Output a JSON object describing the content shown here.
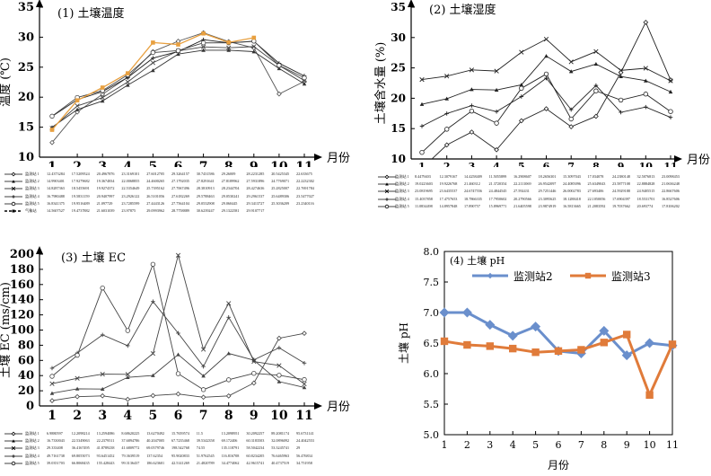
{
  "chart_data": [
    {
      "type": "line",
      "title": "(1) 土壤温度",
      "xlabel": "月份",
      "ylabel": "温度 (℃)",
      "ylim": [
        10,
        35
      ],
      "yticks": [
        "10",
        "15",
        "20",
        "25",
        "30",
        "35"
      ],
      "categories": [
        "1",
        "2",
        "3",
        "4",
        "5",
        "6",
        "7",
        "8",
        "9",
        "10",
        "11"
      ],
      "series": [
        {
          "name": "监测站 1",
          "marker": "diamond-open",
          "color": "#555555",
          "labels": [
            "12.4373284",
            "17.5209524",
            "20.4967876",
            "23.3169101",
            "27.6012705",
            "29.3264157",
            "30.7431586",
            "29.26009",
            "28.2231285",
            "20.5425345",
            "22.633675"
          ],
          "values": [
            12.44,
            17.52,
            20.5,
            23.32,
            27.6,
            29.33,
            30.74,
            29.26,
            28.22,
            20.54,
            22.63
          ]
        },
        {
          "name": "监测站 2",
          "marker": "triangle",
          "color": "#333333",
          "labels": [
            "14.9903401",
            "17.9279682",
            "19.3674834",
            "22.0068855",
            "24.4600265",
            "27.1792035",
            "27.8291641",
            "27.8189962",
            "27.5931896",
            "24.7769071",
            "22.2232302"
          ],
          "values": [
            14.99,
            17.93,
            19.37,
            22.01,
            24.46,
            27.18,
            27.83,
            27.82,
            27.59,
            24.78,
            22.22
          ]
        },
        {
          "name": "监测站 3",
          "marker": "x",
          "color": "#444444",
          "labels": [
            "14.8287363",
            "18.5455691",
            "19.9274372",
            "22.5354649",
            "25.7395162",
            "27.7067496",
            "28.3810913",
            "28.2344704",
            "28.4274636",
            "25.2825007",
            "22.7691784"
          ],
          "values": [
            14.83,
            18.55,
            19.93,
            22.54,
            25.74,
            27.71,
            28.38,
            28.23,
            28.43,
            25.28,
            22.77
          ]
        },
        {
          "name": "监测站 4",
          "marker": "plus",
          "color": "#222222",
          "labels": [
            "16.7980488",
            "19.5831159",
            "20.9407997",
            "23.2926122",
            "26.5101056",
            "27.6182269",
            "29.5788463",
            "29.0530241",
            "29.2961537",
            "25.6489306",
            "23.5477027"
          ],
          "values": [
            16.8,
            19.58,
            20.94,
            23.29,
            26.51,
            27.62,
            29.58,
            29.05,
            29.3,
            25.65,
            23.55
          ]
        },
        {
          "name": "监测站 5",
          "marker": "circle-open",
          "color": "#444444",
          "labels": [
            "16.8341375",
            "19.9516489",
            "21.097729",
            "23.7285599",
            "27.4443126",
            "27.7564104",
            "29.0532908",
            "29.060445",
            "29.3413727",
            "25.3036209",
            "23.2340116"
          ],
          "values": [
            16.83,
            19.95,
            21.1,
            23.73,
            27.44,
            27.76,
            29.05,
            29.06,
            29.34,
            25.3,
            23.23
          ]
        },
        {
          "name": "气象站",
          "marker": "square",
          "color": "#E8A040",
          "dashed_legend": true,
          "labels": [
            "14.5607527",
            "19.4737882",
            "21.6031039",
            "23.97875",
            "29.0993962",
            "28.7758889",
            "30.6239247",
            "29.1322581",
            "29.9107717",
            "",
            ""
          ],
          "values": [
            14.56,
            19.47,
            21.6,
            23.98,
            29.1,
            28.78,
            30.62,
            29.13,
            29.91,
            null,
            null
          ]
        }
      ]
    },
    {
      "type": "line",
      "title": "(2) 土壤湿度",
      "xlabel": "月份",
      "ylabel": "土壤含水量 (%)",
      "ylim": [
        10,
        35
      ],
      "yticks": [
        "10",
        "15",
        "20",
        "25",
        "30",
        "35"
      ],
      "categories": [
        "1",
        "2",
        "3",
        "4",
        "5",
        "6",
        "7",
        "8",
        "9",
        "10",
        "11"
      ],
      "series": [
        {
          "name": "监测站 1",
          "marker": "diamond-open",
          "color": "#222222",
          "labels": [
            "8.4479403",
            "12.3079167",
            "14.4258409",
            "11.5055899",
            "16.2908607",
            "18.2656301",
            "15.3097043",
            "17.034078",
            "24.2380148",
            "32.5076813",
            "23.0098453"
          ],
          "values": [
            8.45,
            12.31,
            14.43,
            11.51,
            16.29,
            18.27,
            15.31,
            17.03,
            24.24,
            32.51,
            23.01
          ]
        },
        {
          "name": "监测站 2",
          "marker": "triangle",
          "color": "#222222",
          "labels": [
            "19.0223603",
            "19.9226768",
            "21.460312",
            "21.3720354",
            "22.2111069",
            "26.9542097",
            "24.4085096",
            "25.6349043",
            "23.5877108",
            "22.8884828",
            "21.0636248"
          ],
          "values": [
            19.02,
            19.92,
            21.46,
            21.37,
            22.21,
            26.95,
            24.41,
            25.63,
            23.59,
            22.89,
            21.06
          ]
        },
        {
          "name": "监测站 3",
          "marker": "x",
          "color": "#222222",
          "labels": [
            "23.0819695",
            "23.6435537",
            "24.6747556",
            "24.4844545",
            "27.592431",
            "29.7251446",
            "26.0002783",
            "27.693406",
            "24.5929188",
            "24.9405515",
            "22.8667606"
          ],
          "values": [
            23.08,
            23.64,
            24.67,
            24.48,
            27.59,
            29.73,
            26.0,
            27.69,
            24.59,
            24.94,
            22.87
          ]
        },
        {
          "name": "监测站 4",
          "marker": "plus",
          "color": "#222222",
          "labels": [
            "15.4037858",
            "17.4757653",
            "18.7866335",
            "17.7950602",
            "20.2790566",
            "23.3095625",
            "18.1288418",
            "22.1050056",
            "17.6904397",
            "18.5531701",
            "16.8527606"
          ],
          "values": [
            15.4,
            17.48,
            18.79,
            17.8,
            20.28,
            23.31,
            18.13,
            22.11,
            17.69,
            18.55,
            16.85
          ]
        },
        {
          "name": "监测站 5",
          "marker": "circle-open",
          "color": "#222222",
          "labels": [
            "11.0834498",
            "14.8957848",
            "17.890757",
            "15.8969771",
            "21.6405598",
            "23.9874919",
            "16.5813665",
            "21.2083592",
            "19.7037662",
            "20.693774",
            "17.8106202"
          ],
          "values": [
            11.08,
            14.9,
            17.89,
            15.9,
            21.64,
            23.99,
            16.58,
            21.21,
            19.7,
            20.69,
            17.81
          ]
        }
      ]
    },
    {
      "type": "line",
      "title": "(3) 土壤 EC",
      "xlabel": "月份",
      "ylabel": "土壤 EC (ms/cm)",
      "ylim": [
        0,
        200
      ],
      "yticks": [
        "0",
        "20",
        "40",
        "60",
        "80",
        "100",
        "120",
        "140",
        "160",
        "180",
        "200"
      ],
      "categories": [
        "1",
        "2",
        "3",
        "4",
        "5",
        "6",
        "7",
        "8",
        "9",
        "10",
        "11"
      ],
      "series": [
        {
          "name": "监测站 1",
          "marker": "diamond-open",
          "color": "#444444",
          "labels": [
            "6.9880597",
            "12.2098214",
            "13.2594086",
            "8.68620225",
            "13.6270492",
            "15.7659574",
            "11.5",
            "13.2098951",
            "30.2092257",
            "89.2081174",
            "95.6731141"
          ],
          "values": [
            6.99,
            12.21,
            13.26,
            8.69,
            13.63,
            15.77,
            11.5,
            13.21,
            30.21,
            89.21,
            95.67
          ]
        },
        {
          "name": "监测站 2",
          "marker": "triangle",
          "color": "#444444",
          "labels": [
            "16.7330043",
            "22.5349063",
            "22.2379511",
            "37.6894786",
            "40.2047005",
            "67.7235468",
            "39.5342358",
            "69.172406",
            "60.3183503",
            "32.0896092",
            "24.4042553"
          ],
          "values": [
            16.73,
            22.53,
            22.24,
            37.69,
            40.2,
            67.72,
            39.53,
            69.17,
            60.32,
            32.09,
            24.4
          ]
        },
        {
          "name": "监测站 3",
          "marker": "x",
          "color": "#444444",
          "labels": [
            "29.333408",
            "36.4167495",
            "41.8789238",
            "41.6809772",
            "69.0579746",
            "198.542768",
            "74.55",
            "135.118791",
            "58.5042234",
            "53.3245741",
            "29"
          ],
          "values": [
            29.33,
            36.42,
            41.88,
            41.68,
            69.06,
            198.54,
            74.55,
            135.12,
            58.5,
            53.32,
            29.0
          ]
        },
        {
          "name": "监测站 4",
          "marker": "plus",
          "color": "#444444",
          "labels": [
            "49.7161738",
            "69.8055073",
            "93.6451452",
            "79.3639519",
            "137.62354",
            "95.9020833",
            "51.9762545",
            "116.816708",
            "60.8234205",
            "76.6465963",
            "56.476834"
          ],
          "values": [
            49.72,
            69.81,
            93.65,
            79.36,
            137.62,
            95.9,
            51.98,
            116.82,
            60.82,
            76.65,
            56.48
          ]
        },
        {
          "name": "监测站 5",
          "marker": "circle-open",
          "color": "#444444",
          "labels": [
            "39.0351703",
            "66.8068435",
            "155.428443",
            "99.3136437",
            "186.623601",
            "42.5141269",
            "21.4820789",
            "34.4774062",
            "42.9615741",
            "40.4737519",
            "34.751958"
          ],
          "values": [
            39.04,
            66.81,
            155.43,
            99.31,
            186.62,
            42.51,
            21.48,
            34.48,
            42.96,
            40.47,
            34.75
          ]
        }
      ]
    },
    {
      "type": "line",
      "title": "(4) 土壤 pH",
      "xlabel": "月份",
      "ylabel": "土壤 pH",
      "ylim": [
        5.0,
        8.0
      ],
      "yticks": [
        "5.0",
        "5.5",
        "6.0",
        "6.5",
        "7.0",
        "7.5",
        "8.0"
      ],
      "categories": [
        "1",
        "2",
        "3",
        "4",
        "5",
        "6",
        "7",
        "8",
        "9",
        "10",
        "11"
      ],
      "legend": "top",
      "series": [
        {
          "name": "监测站2",
          "marker": "diamond",
          "color": "#6A8FCC",
          "values": [
            7.0,
            7.0,
            6.8,
            6.62,
            6.77,
            6.37,
            6.33,
            6.7,
            6.3,
            6.5,
            6.46
          ]
        },
        {
          "name": "监测站3",
          "marker": "square",
          "color": "#E07B3A",
          "values": [
            6.53,
            6.47,
            6.45,
            6.41,
            6.35,
            6.37,
            6.39,
            6.51,
            6.64,
            5.65,
            6.48
          ]
        }
      ]
    }
  ]
}
